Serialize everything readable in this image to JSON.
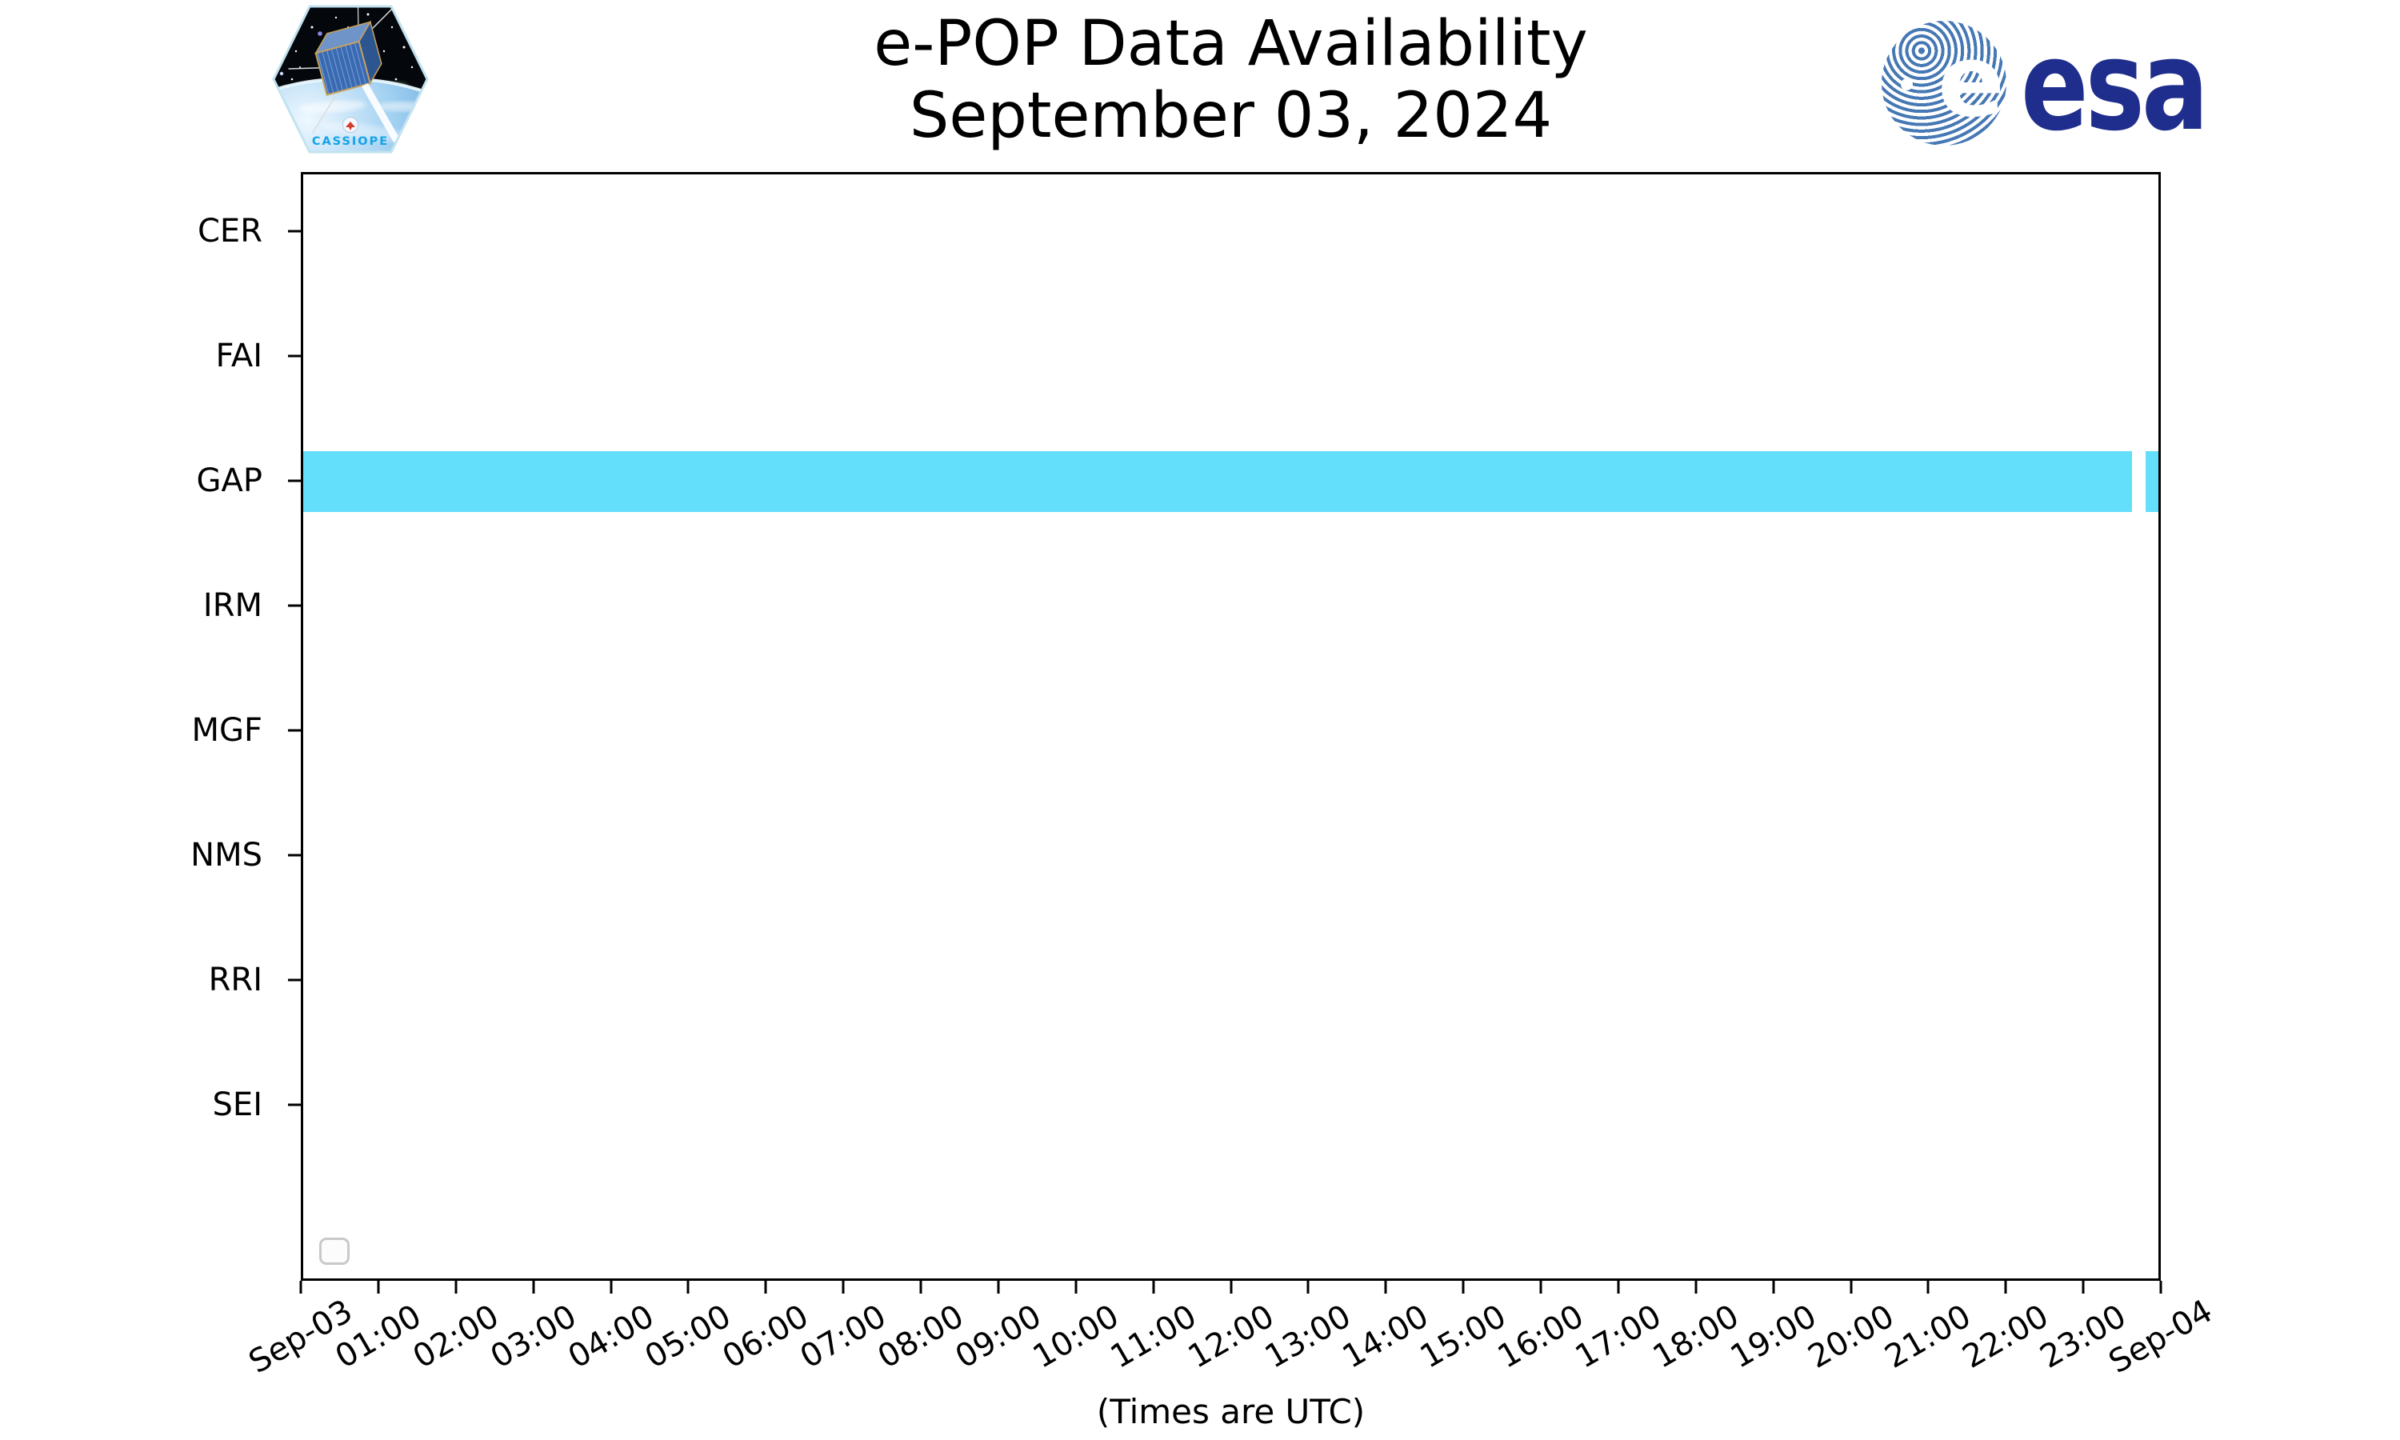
{
  "branding": {
    "cassiope_patch": {
      "icon": "cassiope-mission-patch",
      "label": "CASSIOPE"
    },
    "esa": {
      "icon": "esa-logo",
      "wordmark": "esa"
    }
  },
  "chart_data": {
    "type": "timeline",
    "title": "e-POP Data Availability",
    "subtitle": "September 03, 2024",
    "xlabel": "(Times are UTC)",
    "categories": [
      "CER",
      "FAI",
      "GAP",
      "IRM",
      "MGF",
      "NMS",
      "RRI",
      "SEI"
    ],
    "x_tick_labels": [
      "Sep-03",
      "01:00",
      "02:00",
      "03:00",
      "04:00",
      "05:00",
      "06:00",
      "07:00",
      "08:00",
      "09:00",
      "10:00",
      "11:00",
      "12:00",
      "13:00",
      "14:00",
      "15:00",
      "16:00",
      "17:00",
      "18:00",
      "19:00",
      "20:00",
      "21:00",
      "22:00",
      "23:00",
      "Sep-04"
    ],
    "x_range_hours": [
      0,
      24
    ],
    "grid": false,
    "legend": {
      "visible": true,
      "entries": []
    },
    "bar_color": "#63DEFB",
    "axis_color": "#000000",
    "series": [
      {
        "name": "CER",
        "segments": []
      },
      {
        "name": "FAI",
        "segments": []
      },
      {
        "name": "GAP",
        "segments": [
          {
            "start_hour": 0.0,
            "end_hour": 23.66
          },
          {
            "start_hour": 23.83,
            "end_hour": 24.0
          }
        ]
      },
      {
        "name": "IRM",
        "segments": []
      },
      {
        "name": "MGF",
        "segments": []
      },
      {
        "name": "NMS",
        "segments": []
      },
      {
        "name": "RRI",
        "segments": []
      },
      {
        "name": "SEI",
        "segments": []
      }
    ]
  }
}
